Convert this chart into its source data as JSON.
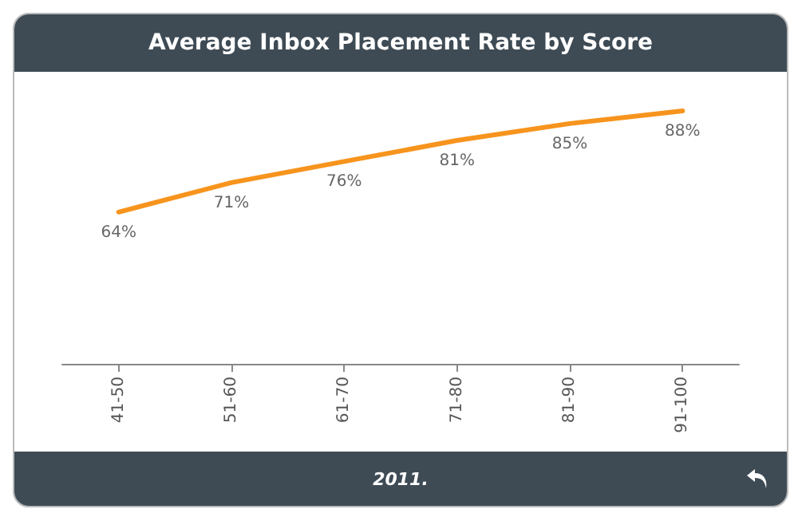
{
  "chart_data": {
    "type": "line",
    "title": "Average Inbox Placement Rate by Score",
    "categories": [
      "41-50",
      "51-60",
      "61-70",
      "71-80",
      "81-90",
      "91-100"
    ],
    "series": [
      {
        "color": "#f7941d",
        "values": [
          64,
          71,
          76,
          81,
          85,
          88
        ],
        "value_labels": [
          "64%",
          "71%",
          "76%",
          "81%",
          "85%",
          "88%"
        ]
      }
    ],
    "annotations": [
      "2011."
    ],
    "marker": "none",
    "grid": false
  }
}
